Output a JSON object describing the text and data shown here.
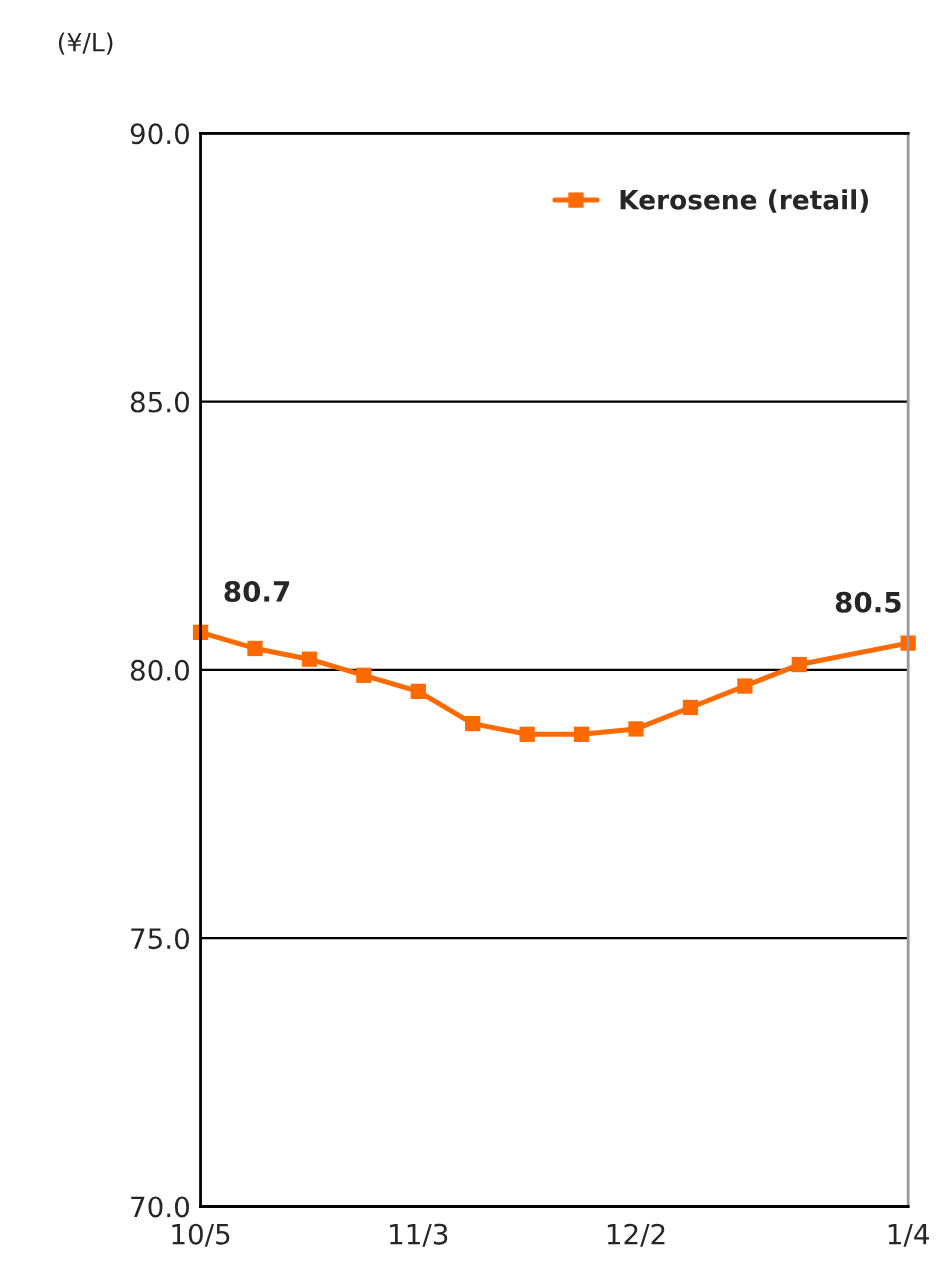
{
  "chart_data": {
    "type": "line",
    "ylabel": "(¥/L)",
    "categories": [
      "10/5",
      null,
      null,
      null,
      "11/3",
      null,
      null,
      null,
      "12/2",
      null,
      null,
      null,
      null,
      "1/4"
    ],
    "series": [
      {
        "name": "Kerosene (retail)",
        "color": "#ff6a00",
        "values": [
          80.7,
          80.4,
          80.2,
          79.9,
          79.6,
          79.0,
          78.8,
          78.8,
          78.9,
          79.3,
          79.7,
          80.1,
          null,
          80.5
        ],
        "value_labels": [
          "80.7",
          null,
          null,
          null,
          null,
          null,
          null,
          null,
          null,
          null,
          null,
          null,
          null,
          "80.5"
        ]
      }
    ],
    "ylim": [
      70,
      90
    ],
    "yticks": [
      {
        "value": 70,
        "label": "70.0"
      },
      {
        "value": 75,
        "label": "75.0"
      },
      {
        "value": 80,
        "label": "80.0"
      },
      {
        "value": 85,
        "label": "85.0"
      },
      {
        "value": 90,
        "label": "90.0"
      }
    ],
    "grid": "y",
    "legend": "top right",
    "marker": "square",
    "line_style": "solid"
  }
}
